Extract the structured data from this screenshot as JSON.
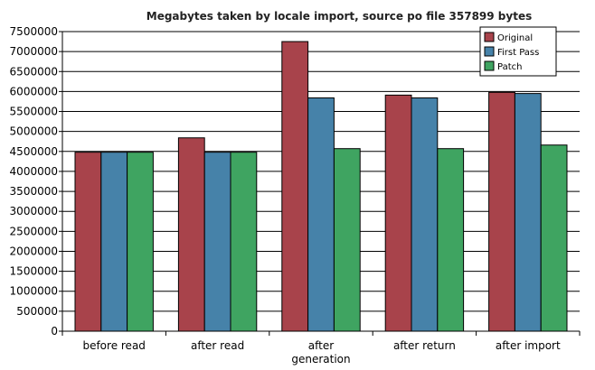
{
  "chart_data": {
    "type": "bar",
    "title": "Megabytes taken by locale import, source po file 357899 bytes",
    "categories": [
      [
        "before read"
      ],
      [
        "after read"
      ],
      [
        "after",
        "generation"
      ],
      [
        "after return"
      ],
      [
        "after import"
      ]
    ],
    "series": [
      {
        "name": "Original",
        "color": "#a8434b",
        "values": [
          4480000,
          4840000,
          7250000,
          5910000,
          5980000
        ]
      },
      {
        "name": "First Pass",
        "color": "#4682a9",
        "values": [
          4480000,
          4480000,
          5840000,
          5840000,
          5950000
        ]
      },
      {
        "name": "Patch",
        "color": "#3fa461",
        "values": [
          4480000,
          4480000,
          4570000,
          4570000,
          4660000
        ]
      }
    ],
    "ylim": [
      0,
      7500000
    ],
    "ytick_step": 500000,
    "ytick_labels": [
      "0",
      "500000",
      "1000000",
      "1500000",
      "2000000",
      "2500000",
      "3000000",
      "3500000",
      "4000000",
      "4500000",
      "5000000",
      "5500000",
      "6000000",
      "6500000",
      "7000000",
      "7500000"
    ],
    "grid": true,
    "legend_position": "top-right"
  }
}
